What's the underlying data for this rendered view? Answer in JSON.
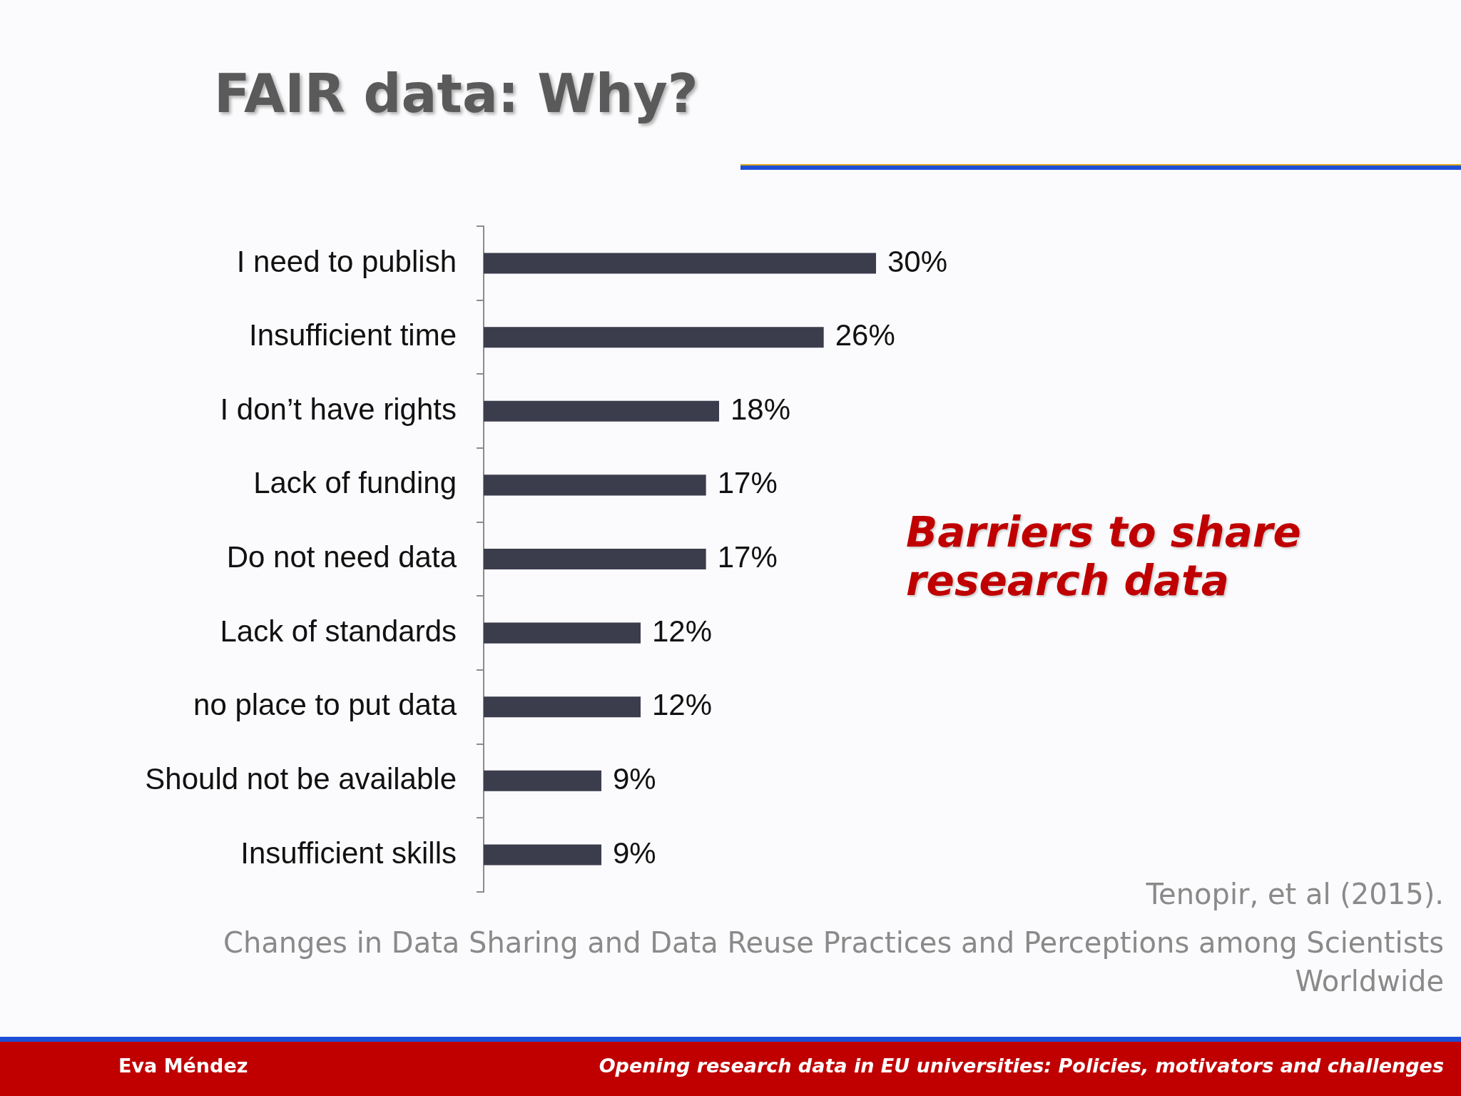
{
  "chart_data": {
    "type": "bar",
    "orientation": "horizontal",
    "title": "FAIR data: Why?",
    "subtitle": "Barriers to share research data",
    "categories": [
      "I need to publish",
      "Insufficient time",
      "I don’t have rights",
      "Lack of funding",
      "Do not need data",
      "Lack of standards",
      "no place to put data",
      "Should not be available",
      "Insufficient skills"
    ],
    "values": [
      30,
      26,
      18,
      17,
      17,
      12,
      12,
      9,
      9
    ],
    "color": "#3b3d4d",
    "value_labels": [
      "30%",
      "26%",
      "18%",
      "17%",
      "17%",
      "12%",
      "12%",
      "9%",
      "9%"
    ],
    "annotations": [
      "Tenopir, et al (2015).",
      "Changes in Data Sharing and Data Reuse Practices and Perceptions among Scientists Worldwide",
      "Eva Méndez",
      "Opening research data in EU universities: Policies, motivators and challenges"
    ]
  }
}
